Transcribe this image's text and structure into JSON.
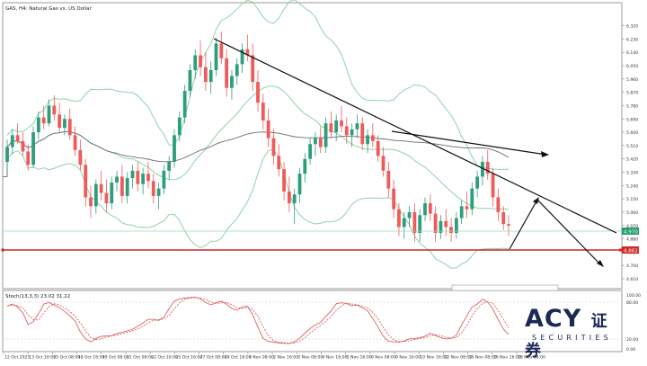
{
  "window": {
    "title": "GAS, H4:  Natural Gas vs. US Dollar"
  },
  "colors": {
    "bull_candle": "#2e9d7c",
    "bear_candle": "#ef5b5b",
    "bollinger": "#8fd2a6",
    "moving_average": "#6a6a6a",
    "trendline": "#111111",
    "stoch_main": "#e06060",
    "stoch_signal": "#d06060",
    "price_line": "#9fd6b7",
    "support_line": "#c8252b"
  },
  "price_axis": {
    "ticks": [
      "6.320",
      "6.230",
      "6.140",
      "6.050",
      "5.960",
      "5.870",
      "5.780",
      "5.690",
      "5.600",
      "5.510",
      "5.420",
      "5.330",
      "5.240",
      "5.150",
      "5.060",
      "4.970",
      "4.880",
      "4.790",
      "4.700",
      "4.610"
    ],
    "current_price_label": "4.970",
    "support_price_label": "4.862"
  },
  "time_axis": {
    "ticks": [
      "12 Oct 2021",
      "13 Oct 16:00",
      "15 Oct 08:00",
      "18 Oct 16:00",
      "19 Oct 08:00",
      "21 Oct 08:00",
      "22 Oct 16:00",
      "25 Oct 16:00",
      "27 Oct 08:00",
      "28 Oct 16:00",
      "1 Nov 08:00",
      "2 Nov 16:00",
      "3 Nov 08:00",
      "4 Nov 16:00",
      "5 Nov 16:00",
      "9 Nov 08:00",
      "9 Nov 16:00",
      "10 Nov 16:00",
      "12 Nov 08:00",
      "15 Nov 08:00",
      "16 Nov 16:00",
      "18 Nov 08:00"
    ]
  },
  "indicator": {
    "label": "Stoch(13,3,3) 23.02 31.22",
    "ticks": [
      "100.00",
      "80.00",
      "20.00",
      "0.00"
    ]
  },
  "logo": {
    "main": "ACY",
    "suffix": "证券",
    "sub": "SECURITIES"
  },
  "chart_data": {
    "type": "candlestick",
    "symbol": "GAS",
    "timeframe": "H4",
    "ylim": [
      4.61,
      6.36
    ],
    "candles": [
      [
        5.4,
        5.55,
        5.32,
        5.5
      ],
      [
        5.5,
        5.62,
        5.45,
        5.58
      ],
      [
        5.58,
        5.66,
        5.52,
        5.54
      ],
      [
        5.54,
        5.6,
        5.44,
        5.47
      ],
      [
        5.47,
        5.52,
        5.34,
        5.38
      ],
      [
        5.38,
        5.64,
        5.36,
        5.6
      ],
      [
        5.6,
        5.74,
        5.55,
        5.7
      ],
      [
        5.7,
        5.78,
        5.62,
        5.66
      ],
      [
        5.66,
        5.82,
        5.64,
        5.78
      ],
      [
        5.78,
        5.85,
        5.68,
        5.72
      ],
      [
        5.72,
        5.8,
        5.6,
        5.63
      ],
      [
        5.63,
        5.72,
        5.58,
        5.69
      ],
      [
        5.69,
        5.76,
        5.55,
        5.58
      ],
      [
        5.58,
        5.64,
        5.44,
        5.48
      ],
      [
        5.48,
        5.55,
        5.34,
        5.38
      ],
      [
        5.38,
        5.42,
        5.1,
        5.16
      ],
      [
        5.16,
        5.24,
        5.02,
        5.1
      ],
      [
        5.1,
        5.28,
        5.05,
        5.25
      ],
      [
        5.25,
        5.34,
        5.14,
        5.19
      ],
      [
        5.19,
        5.28,
        5.06,
        5.12
      ],
      [
        5.12,
        5.3,
        5.08,
        5.26
      ],
      [
        5.26,
        5.34,
        5.2,
        5.3
      ],
      [
        5.3,
        5.38,
        5.12,
        5.17
      ],
      [
        5.17,
        5.33,
        5.12,
        5.29
      ],
      [
        5.29,
        5.38,
        5.22,
        5.34
      ],
      [
        5.34,
        5.4,
        5.2,
        5.25
      ],
      [
        5.25,
        5.36,
        5.18,
        5.32
      ],
      [
        5.32,
        5.4,
        5.22,
        5.27
      ],
      [
        5.27,
        5.32,
        5.12,
        5.17
      ],
      [
        5.17,
        5.26,
        5.08,
        5.22
      ],
      [
        5.22,
        5.38,
        5.18,
        5.34
      ],
      [
        5.34,
        5.44,
        5.28,
        5.4
      ],
      [
        5.4,
        5.62,
        5.36,
        5.58
      ],
      [
        5.58,
        5.74,
        5.54,
        5.7
      ],
      [
        5.7,
        5.92,
        5.66,
        5.88
      ],
      [
        5.88,
        6.06,
        5.84,
        6.02
      ],
      [
        6.02,
        6.16,
        5.96,
        6.12
      ],
      [
        6.12,
        6.22,
        5.98,
        6.04
      ],
      [
        6.04,
        6.14,
        5.88,
        5.94
      ],
      [
        5.94,
        6.08,
        5.86,
        6.02
      ],
      [
        6.02,
        6.24,
        5.98,
        6.2
      ],
      [
        6.2,
        6.28,
        6.06,
        6.1
      ],
      [
        6.1,
        6.16,
        5.84,
        5.9
      ],
      [
        5.9,
        6.02,
        5.82,
        5.98
      ],
      [
        5.98,
        6.1,
        5.92,
        6.06
      ],
      [
        6.06,
        6.2,
        6.0,
        6.16
      ],
      [
        6.16,
        6.26,
        6.08,
        6.12
      ],
      [
        6.12,
        6.2,
        5.88,
        5.94
      ],
      [
        5.94,
        6.02,
        5.74,
        5.8
      ],
      [
        5.8,
        5.86,
        5.62,
        5.68
      ],
      [
        5.68,
        5.76,
        5.5,
        5.56
      ],
      [
        5.56,
        5.62,
        5.38,
        5.44
      ],
      [
        5.44,
        5.52,
        5.3,
        5.35
      ],
      [
        5.35,
        5.4,
        5.14,
        5.2
      ],
      [
        5.2,
        5.3,
        5.06,
        5.12
      ],
      [
        5.12,
        5.22,
        4.98,
        5.18
      ],
      [
        5.18,
        5.36,
        5.12,
        5.32
      ],
      [
        5.32,
        5.46,
        5.26,
        5.42
      ],
      [
        5.42,
        5.56,
        5.38,
        5.52
      ],
      [
        5.52,
        5.6,
        5.44,
        5.56
      ],
      [
        5.56,
        5.64,
        5.46,
        5.5
      ],
      [
        5.5,
        5.7,
        5.46,
        5.66
      ],
      [
        5.66,
        5.74,
        5.56,
        5.6
      ],
      [
        5.6,
        5.72,
        5.54,
        5.68
      ],
      [
        5.68,
        5.78,
        5.6,
        5.64
      ],
      [
        5.64,
        5.7,
        5.52,
        5.58
      ],
      [
        5.58,
        5.66,
        5.5,
        5.62
      ],
      [
        5.62,
        5.72,
        5.56,
        5.66
      ],
      [
        5.66,
        5.7,
        5.48,
        5.52
      ],
      [
        5.52,
        5.62,
        5.46,
        5.58
      ],
      [
        5.58,
        5.66,
        5.5,
        5.54
      ],
      [
        5.54,
        5.58,
        5.4,
        5.44
      ],
      [
        5.44,
        5.5,
        5.3,
        5.34
      ],
      [
        5.34,
        5.4,
        5.16,
        5.22
      ],
      [
        5.22,
        5.28,
        5.02,
        5.08
      ],
      [
        5.08,
        5.12,
        4.9,
        4.96
      ],
      [
        4.96,
        5.06,
        4.88,
        5.02
      ],
      [
        5.02,
        5.1,
        4.96,
        5.06
      ],
      [
        5.06,
        5.12,
        4.86,
        4.92
      ],
      [
        4.92,
        5.08,
        4.86,
        5.04
      ],
      [
        5.04,
        5.16,
        5.0,
        5.12
      ],
      [
        5.12,
        5.18,
        5.0,
        5.05
      ],
      [
        5.05,
        5.1,
        4.86,
        4.92
      ],
      [
        4.92,
        5.04,
        4.88,
        5.0
      ],
      [
        5.0,
        5.08,
        4.9,
        4.96
      ],
      [
        4.96,
        5.02,
        4.86,
        4.92
      ],
      [
        4.92,
        5.06,
        4.88,
        5.02
      ],
      [
        5.02,
        5.14,
        4.98,
        5.1
      ],
      [
        5.1,
        5.2,
        5.02,
        5.08
      ],
      [
        5.08,
        5.26,
        5.04,
        5.22
      ],
      [
        5.22,
        5.34,
        5.16,
        5.3
      ],
      [
        5.3,
        5.44,
        5.24,
        5.4
      ],
      [
        5.4,
        5.48,
        5.28,
        5.32
      ],
      [
        5.32,
        5.36,
        5.1,
        5.16
      ],
      [
        5.16,
        5.22,
        5.0,
        5.06
      ],
      [
        5.06,
        5.1,
        4.94,
        4.98
      ],
      [
        4.98,
        5.04,
        4.9,
        4.97
      ]
    ]
  }
}
